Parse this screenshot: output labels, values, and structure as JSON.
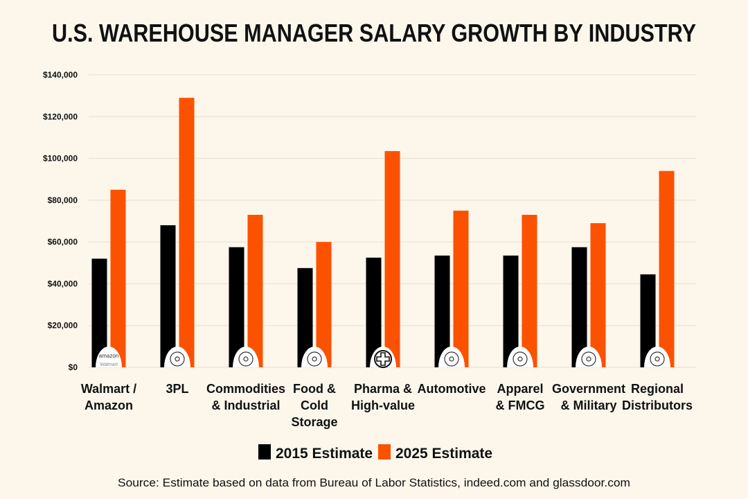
{
  "chart_data": {
    "type": "bar",
    "title": "U.S. WAREHOUSE MANAGER SALARY GROWTH BY INDUSTRY",
    "xlabel": "",
    "ylabel": "",
    "ylim": [
      0,
      140000
    ],
    "yticks": [
      "$0",
      "$20,000",
      "$40,000",
      "$60,000",
      "$80,000",
      "$100,000",
      "$120,000",
      "$140,000"
    ],
    "grid": true,
    "legend_position": "bottom",
    "categories": [
      [
        "Walmart /",
        "Amazon"
      ],
      [
        "3PL"
      ],
      [
        "Commodities",
        "& Industrial"
      ],
      [
        "Food &",
        "Cold",
        "Storage"
      ],
      [
        "Pharma &",
        "High-value"
      ],
      [
        "Automotive"
      ],
      [
        "Apparel",
        "& FMCG"
      ],
      [
        "Government",
        "& Military"
      ],
      [
        "Regional",
        "Distributors"
      ]
    ],
    "category_icons": [
      "amazon-walmart-logo",
      "3pl-logistics-icon",
      "commodities-icon",
      "cold-storage-icon",
      "medical-cross-icon",
      "automotive-gear-icon",
      "apparel-shirt-icon",
      "government-building-icon",
      "globe-icon"
    ],
    "icon_logo_text": [
      "amazon",
      "Walmart"
    ],
    "series": [
      {
        "name": "2015 Estimate",
        "color": "#000000",
        "values": [
          52000,
          68000,
          57500,
          47500,
          52500,
          53500,
          53500,
          57500,
          44500
        ]
      },
      {
        "name": "2025 Estimate",
        "color": "#fc5200",
        "values": [
          85000,
          129000,
          73000,
          60000,
          103500,
          75000,
          73000,
          69000,
          94000
        ]
      }
    ],
    "source": "Source: Estimate based on data from Bureau of Labor Statistics, indeed.com and glassdoor.com"
  }
}
